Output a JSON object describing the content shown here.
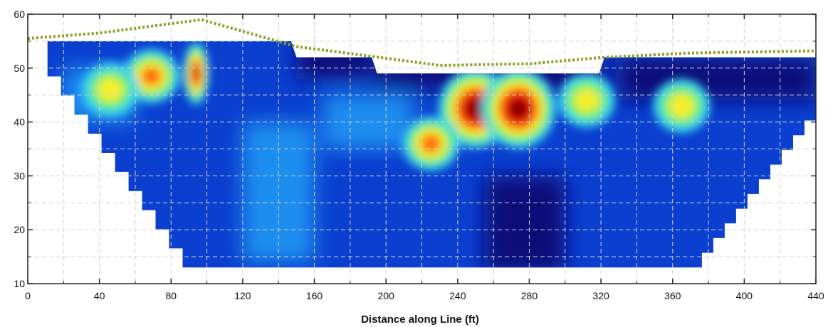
{
  "chart_data": {
    "type": "heatmap",
    "title": "",
    "xlabel": "Distance along Line (ft)",
    "ylabel": "",
    "xlim": [
      0,
      440
    ],
    "ylim": [
      10,
      60
    ],
    "x_ticks": [
      0,
      40,
      80,
      120,
      160,
      200,
      240,
      280,
      320,
      360,
      400,
      440
    ],
    "y_ticks": [
      10,
      20,
      30,
      40,
      50,
      60
    ],
    "grid": true,
    "colormap": [
      "#08107a",
      "#0a3fd0",
      "#1f8ef0",
      "#35d2ee",
      "#6ef06a",
      "#f5ef2a",
      "#ff6a0a",
      "#e01010",
      "#8a0000"
    ],
    "colors": {
      "surface_line": "#8aa020",
      "background": "#ffffff",
      "frame": "#222222"
    },
    "surface_line": {
      "x": [
        0,
        40,
        97,
        150,
        196,
        230,
        280,
        322,
        370,
        440
      ],
      "y": [
        55.5,
        56.5,
        59,
        54,
        52,
        50.5,
        50.8,
        52,
        52.8,
        53.2
      ]
    },
    "section_top": {
      "x": [
        11,
        147,
        150,
        192,
        195,
        319,
        322,
        440
      ],
      "y": [
        55,
        55,
        52,
        52,
        49,
        49,
        52,
        52
      ]
    },
    "section_bottom_left": {
      "x": [
        11,
        94
      ],
      "y": [
        52,
        13
      ]
    },
    "section_bottom_right": {
      "x": [
        370,
        440
      ],
      "y": [
        13,
        43
      ]
    },
    "section_base_y": 13,
    "anomalies": [
      {
        "x": 250,
        "y": 42.5,
        "level": 1.0
      },
      {
        "x": 274,
        "y": 42.5,
        "level": 1.0
      },
      {
        "x": 94,
        "y": 49,
        "level": 0.85
      },
      {
        "x": 69,
        "y": 48.5,
        "level": 0.55
      },
      {
        "x": 225,
        "y": 36,
        "level": 0.5
      },
      {
        "x": 312,
        "y": 44,
        "level": 0.45
      },
      {
        "x": 46,
        "y": 46,
        "level": 0.3
      },
      {
        "x": 365,
        "y": 43,
        "level": 0.3
      }
    ]
  }
}
